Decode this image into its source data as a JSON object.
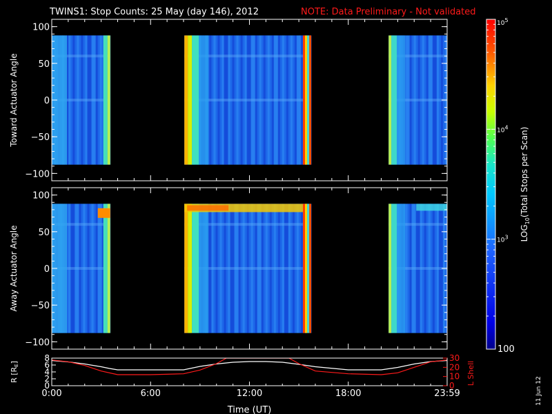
{
  "title": "TWINS1: Stop Counts: 25 May (day 146), 2012",
  "note": "NOTE: Data Preliminary - Not validated",
  "side_date": "11 Jun 12",
  "colors": {
    "white": "#ffffff",
    "note": "#ff1a1a",
    "bg": "#000000"
  },
  "chart_data": [
    {
      "type": "heatmap",
      "ylabel": "Toward Actuator Angle",
      "xlim": [
        0,
        24
      ],
      "ylim": [
        -110,
        110
      ],
      "yticks": [
        100,
        50,
        0,
        -50,
        -100
      ],
      "data_ylim": [
        -88,
        88
      ],
      "coverage_hours": [
        [
          0.0,
          3.55
        ],
        [
          8.05,
          15.75
        ],
        [
          20.45,
          24.0
        ]
      ]
    },
    {
      "type": "heatmap",
      "ylabel": "Away Actuator Angle",
      "xlim": [
        0,
        24
      ],
      "ylim": [
        -110,
        110
      ],
      "yticks": [
        100,
        50,
        0,
        -50,
        -100
      ],
      "data_ylim": [
        -88,
        88
      ],
      "coverage_hours": [
        [
          0.0,
          3.55
        ],
        [
          8.05,
          15.75
        ],
        [
          20.45,
          24.0
        ]
      ]
    },
    {
      "type": "line",
      "ylabel_left": "R [RE]",
      "ylabel_right": "L Shell",
      "xlabel": "Time (UT)",
      "xlim": [
        0,
        24
      ],
      "xtick_labels": [
        "0:00",
        "6:00",
        "12:00",
        "18:00",
        "23:59"
      ],
      "xtick_hours": [
        0,
        6,
        12,
        18,
        24
      ],
      "left_ylim": [
        0,
        8
      ],
      "left_yticks": [
        0,
        2,
        4,
        6,
        8
      ],
      "right_ylim": [
        0,
        30
      ],
      "right_yticks": [
        0,
        10,
        20,
        30
      ],
      "series": [
        {
          "axis": "left",
          "color": "#ffffff",
          "x": [
            0,
            1,
            2,
            3,
            3.5,
            4,
            6,
            8,
            9,
            10,
            11,
            12,
            13,
            14,
            15,
            16,
            18,
            20,
            21,
            22,
            23,
            24
          ],
          "values": [
            7.3,
            6.9,
            6.3,
            5.5,
            5.0,
            4.6,
            4.6,
            4.6,
            5.6,
            6.3,
            6.8,
            7.0,
            7.0,
            6.8,
            6.2,
            5.5,
            4.6,
            4.6,
            5.3,
            6.3,
            7.0,
            7.3
          ]
        },
        {
          "axis": "right",
          "color": "#ff1a1a",
          "x": [
            0,
            1,
            2,
            3,
            4,
            6,
            8,
            9,
            10,
            10.6,
            14.4,
            15,
            16,
            18,
            20,
            21,
            22,
            23,
            24
          ],
          "values": [
            28,
            26,
            22,
            16,
            12,
            12,
            13,
            17,
            24,
            30,
            30,
            24,
            16,
            13,
            12,
            14,
            20,
            26,
            28
          ]
        }
      ]
    },
    {
      "type": "colorbar",
      "label": "LOG10(Total Stops per Scan)",
      "scale": "log",
      "range": [
        100,
        100000
      ],
      "tick_labels": [
        "100",
        "10^3",
        "10^4",
        "10^5"
      ],
      "tick_values": [
        100,
        1000,
        10000,
        100000
      ]
    }
  ]
}
